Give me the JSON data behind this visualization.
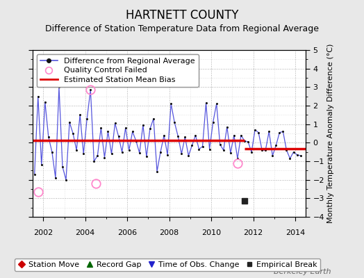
{
  "title": "HARTNETT COUNTY",
  "subtitle": "Difference of Station Temperature Data from Regional Average",
  "ylabel": "Monthly Temperature Anomaly Difference (°C)",
  "xlim": [
    2001.5,
    2014.5
  ],
  "ylim": [
    -4,
    5
  ],
  "yticks": [
    -4,
    -3,
    -2,
    -1,
    0,
    1,
    2,
    3,
    4,
    5
  ],
  "xticks": [
    2002,
    2004,
    2006,
    2008,
    2010,
    2012,
    2014
  ],
  "background_color": "#e8e8e8",
  "plot_background": "#ffffff",
  "line_color": "#5555dd",
  "dot_color": "#111111",
  "bias_color": "#dd0000",
  "bias_segment1": [
    2001.5,
    2011.58,
    0.13,
    0.13
  ],
  "bias_segment2": [
    2011.58,
    2014.5,
    -0.32,
    -0.32
  ],
  "empirical_break_x": 2011.58,
  "empirical_break_y": -3.15,
  "qc_failed": [
    [
      2001.75,
      -2.65
    ],
    [
      2004.25,
      2.85
    ],
    [
      2004.5,
      -2.2
    ],
    [
      2011.25,
      -1.1
    ]
  ],
  "time_series_x": [
    2001.583,
    2001.75,
    2001.917,
    2002.083,
    2002.25,
    2002.417,
    2002.583,
    2002.75,
    2002.917,
    2003.083,
    2003.25,
    2003.417,
    2003.583,
    2003.75,
    2003.917,
    2004.083,
    2004.25,
    2004.417,
    2004.583,
    2004.75,
    2004.917,
    2005.083,
    2005.25,
    2005.417,
    2005.583,
    2005.75,
    2005.917,
    2006.083,
    2006.25,
    2006.417,
    2006.583,
    2006.75,
    2006.917,
    2007.083,
    2007.25,
    2007.417,
    2007.583,
    2007.75,
    2007.917,
    2008.083,
    2008.25,
    2008.417,
    2008.583,
    2008.75,
    2008.917,
    2009.083,
    2009.25,
    2009.417,
    2009.583,
    2009.75,
    2009.917,
    2010.083,
    2010.25,
    2010.417,
    2010.583,
    2010.75,
    2010.917,
    2011.083,
    2011.25,
    2011.417,
    2011.583,
    2011.75,
    2011.917,
    2012.083,
    2012.25,
    2012.417,
    2012.583,
    2012.75,
    2012.917,
    2013.083,
    2013.25,
    2013.417,
    2013.583,
    2013.75,
    2013.917,
    2014.083,
    2014.25
  ],
  "time_series_y": [
    -1.7,
    2.5,
    -1.2,
    2.2,
    0.3,
    -0.5,
    -1.9,
    3.0,
    -1.3,
    -2.0,
    1.1,
    0.5,
    -0.4,
    1.5,
    -0.6,
    1.3,
    2.85,
    -1.0,
    -0.7,
    0.8,
    -0.8,
    0.6,
    -0.6,
    1.05,
    0.35,
    -0.5,
    0.8,
    -0.4,
    0.6,
    0.1,
    -0.55,
    0.95,
    -0.75,
    0.75,
    1.3,
    -1.55,
    -0.5,
    0.4,
    -0.65,
    2.1,
    1.1,
    0.35,
    -0.6,
    0.3,
    -0.7,
    -0.15,
    0.4,
    -0.35,
    -0.2,
    2.15,
    -0.35,
    1.1,
    2.1,
    -0.1,
    -0.4,
    0.85,
    -0.55,
    0.4,
    -0.85,
    0.4,
    0.1,
    0.05,
    -0.5,
    0.7,
    0.55,
    -0.4,
    -0.4,
    0.6,
    -0.7,
    -0.15,
    0.55,
    0.6,
    -0.4,
    -0.85,
    -0.5,
    -0.65,
    -0.7
  ],
  "watermark": "Berkeley Earth",
  "title_fontsize": 12,
  "subtitle_fontsize": 9,
  "legend_fontsize": 8,
  "axis_fontsize": 8,
  "watermark_fontsize": 8
}
